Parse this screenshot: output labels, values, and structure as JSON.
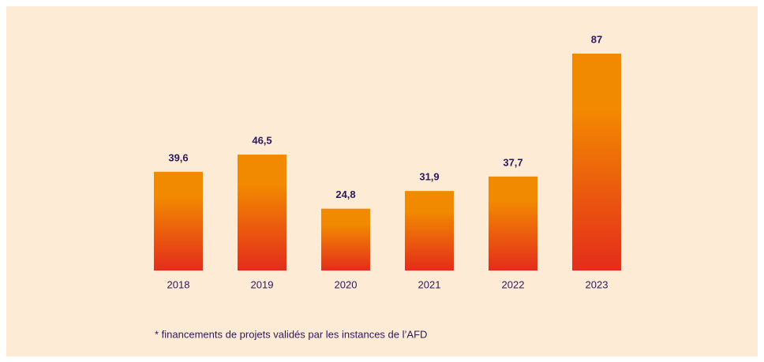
{
  "chart_data": {
    "type": "bar",
    "categories": [
      "2018",
      "2019",
      "2020",
      "2021",
      "2022",
      "2023"
    ],
    "values": [
      39.6,
      46.5,
      24.8,
      31.9,
      37.7,
      87
    ],
    "value_labels": [
      "39,6",
      "46,5",
      "24,8",
      "31,9",
      "37,7",
      "87"
    ],
    "colors": [
      "#f28a00",
      "#e42d1b"
    ],
    "footnote": "* financements de projets validés par les instances de l’AFD"
  }
}
